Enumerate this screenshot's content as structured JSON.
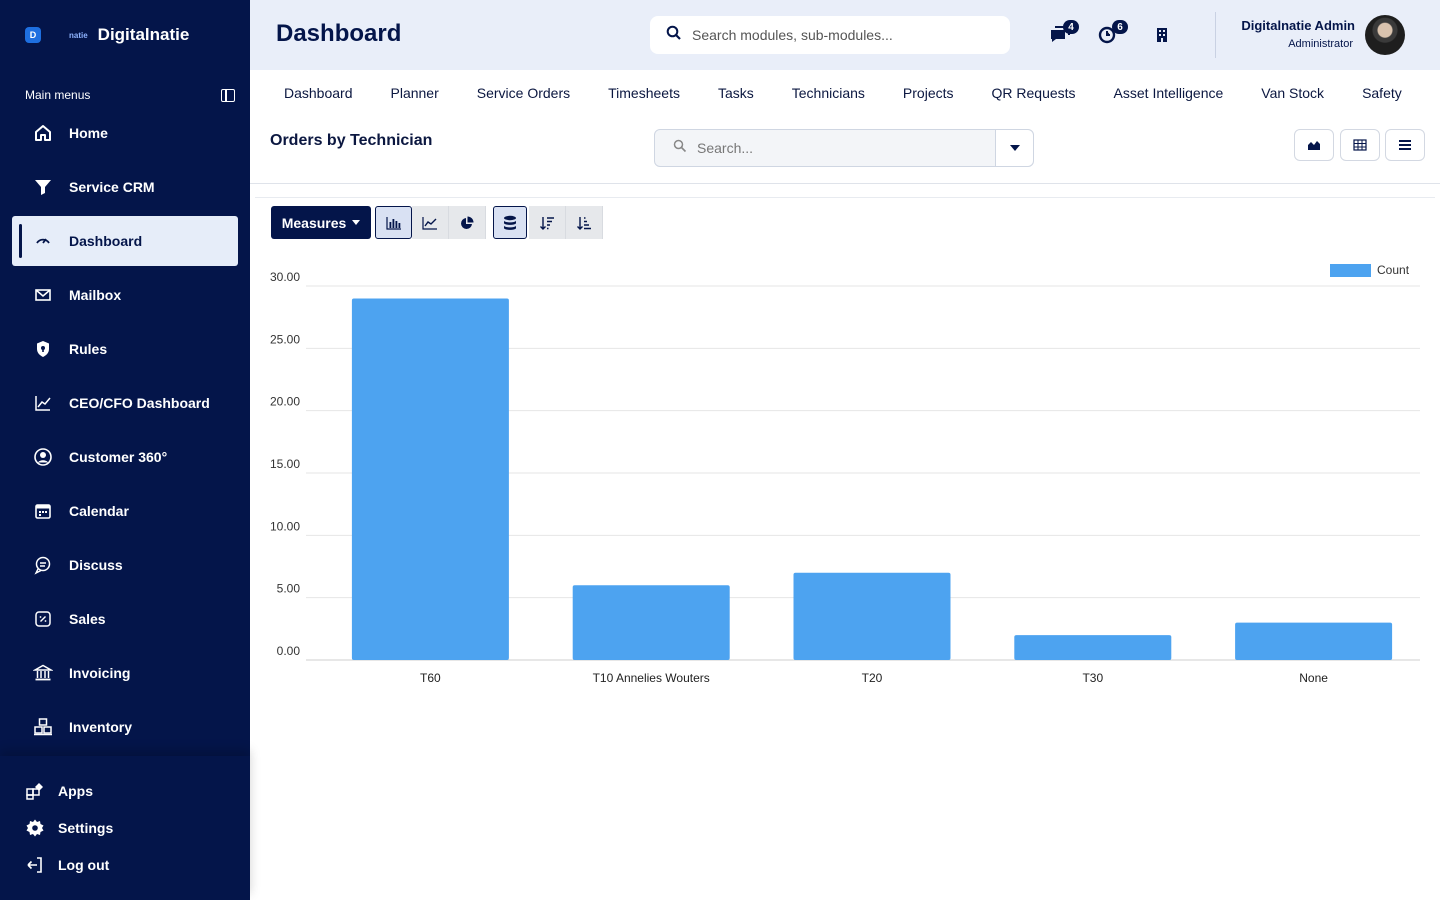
{
  "brand": {
    "logo_letter": "D",
    "small_text": "natie",
    "name": "Digitalnatie"
  },
  "sidebar": {
    "section_label": "Main menus",
    "items": [
      {
        "label": "Home",
        "icon": "home-icon"
      },
      {
        "label": "Service CRM",
        "icon": "filter-icon"
      },
      {
        "label": "Dashboard",
        "icon": "speedometer-icon",
        "active": true
      },
      {
        "label": "Mailbox",
        "icon": "envelope-icon"
      },
      {
        "label": "Rules",
        "icon": "shield-icon"
      },
      {
        "label": "CEO/CFO Dashboard",
        "icon": "line-chart-icon"
      },
      {
        "label": "Customer 360°",
        "icon": "user-circle-icon"
      },
      {
        "label": "Calendar",
        "icon": "calendar-icon"
      },
      {
        "label": "Discuss",
        "icon": "discuss-icon"
      },
      {
        "label": "Sales",
        "icon": "percent-icon"
      },
      {
        "label": "Invoicing",
        "icon": "bank-icon"
      },
      {
        "label": "Inventory",
        "icon": "boxes-icon"
      }
    ],
    "bottom": {
      "apps": "Apps",
      "settings": "Settings",
      "logout": "Log out"
    }
  },
  "header": {
    "title": "Dashboard",
    "search_placeholder": "Search modules, sub-modules...",
    "messages_count": "4",
    "activities_count": "6",
    "user_name": "Digitalnatie Admin",
    "user_role": "Administrator"
  },
  "tabs": [
    "Dashboard",
    "Planner",
    "Service Orders",
    "Timesheets",
    "Tasks",
    "Technicians",
    "Projects",
    "QR Requests",
    "Asset Intelligence",
    "Van Stock",
    "Safety"
  ],
  "view": {
    "title": "Orders by Technician",
    "search_placeholder": "Search...",
    "measures_label": "Measures"
  },
  "colors": {
    "sidebar": "#04154a",
    "accent": "#4da3f0",
    "header_bg": "#e9eef9"
  },
  "chart_data": {
    "type": "bar",
    "categories": [
      "T60",
      "T10 Annelies Wouters",
      "T20",
      "T30",
      "None"
    ],
    "series": [
      {
        "name": "Count",
        "values": [
          29,
          6,
          7,
          2,
          3
        ]
      }
    ],
    "ylim": [
      0,
      30
    ],
    "yticks": [
      "0.00",
      "5.00",
      "10.00",
      "15.00",
      "20.00",
      "25.00",
      "30.00"
    ],
    "legend_position": "top-right",
    "grid": true,
    "bar_color": "#4da3f0"
  }
}
